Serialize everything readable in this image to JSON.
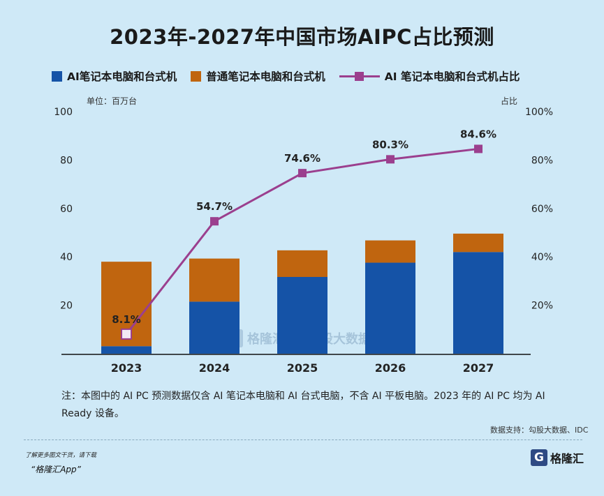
{
  "title": "2023年-2027年中国市场AIPC占比预测",
  "legend": {
    "ai": "AI笔记本电脑和台式机",
    "normal": "普通笔记本电脑和台式机",
    "share": "AI 笔记本电脑和台式机占比"
  },
  "units": {
    "left": "单位：百万台",
    "right": "占比"
  },
  "note": "注：本图中的 AI PC 预测数据仅含 AI 笔记本电脑和 AI 台式电脑，不含 AI 平板电脑。2023 年的 AI PC 均为 AI Ready 设备。",
  "source": "数据支持：勾股大数据、IDC",
  "footer": {
    "line1": "了解更多图文干货，请下载",
    "line2": "“格隆汇App”"
  },
  "logo": {
    "mark": "G",
    "text": "格隆汇"
  },
  "watermark": {
    "mark": "G",
    "text1": "格隆汇",
    "text2": "勾股大数据"
  },
  "colors": {
    "ai": "#1553a7",
    "normal": "#c0650f",
    "share": "#9b3f8e",
    "background": "#cfe9f7"
  },
  "icons": {
    "marker": "square-marker"
  },
  "chart_data": {
    "type": "bar",
    "stacked": true,
    "categories": [
      "2023",
      "2024",
      "2025",
      "2026",
      "2027"
    ],
    "series": [
      {
        "name": "AI笔记本电脑和台式机",
        "values": [
          3.1,
          21.5,
          31.7,
          37.6,
          42.0
        ]
      },
      {
        "name": "普通笔记本电脑和台式机",
        "values": [
          34.9,
          17.8,
          11.0,
          9.2,
          7.6
        ]
      }
    ],
    "line_series": {
      "name": "AI 笔记本电脑和台式机占比",
      "values": [
        8.1,
        54.7,
        74.6,
        80.3,
        84.6
      ],
      "labels": [
        "8.1%",
        "54.7%",
        "74.6%",
        "80.3%",
        "84.6%"
      ]
    },
    "y_left": {
      "lim": [
        0,
        100
      ],
      "ticks": [
        "20",
        "40",
        "60",
        "80",
        "100"
      ],
      "tick_values": [
        20,
        40,
        60,
        80,
        100
      ]
    },
    "y_right": {
      "lim": [
        0,
        100
      ],
      "ticks": [
        "20%",
        "40%",
        "60%",
        "80%",
        "100%"
      ],
      "tick_values": [
        20,
        40,
        60,
        80,
        100
      ]
    },
    "grid": false,
    "legend_position": "top"
  }
}
